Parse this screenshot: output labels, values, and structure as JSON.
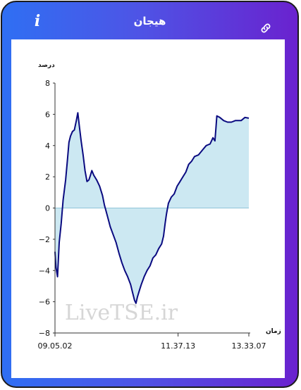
{
  "header": {
    "title": "هیجان",
    "info_label": "i",
    "link_icon": "link-icon"
  },
  "colors": {
    "gradient_start": "#2f6ff3",
    "gradient_end": "#6a22cf",
    "line": "#0a0a80",
    "area": "#cce8f2"
  },
  "watermark": "LiveTSE.ir",
  "chart_data": {
    "type": "area",
    "ylabel": "درصد",
    "xlabel": "زمان",
    "ylim": [
      -8,
      8
    ],
    "yticks": [
      "8",
      "6",
      "4",
      "2",
      "0",
      "−2",
      "−4",
      "−6",
      "−8"
    ],
    "xticks": [
      "09.05.02",
      "11.37.13",
      "13.33.07"
    ],
    "baseline": 0,
    "series": [
      {
        "values": [
          [
            0.0,
            -2.8
          ],
          [
            0.005,
            -3.8
          ],
          [
            0.013,
            -4.4
          ],
          [
            0.022,
            -2.2
          ],
          [
            0.032,
            -1.0
          ],
          [
            0.042,
            0.5
          ],
          [
            0.055,
            1.8
          ],
          [
            0.065,
            3.2
          ],
          [
            0.072,
            4.2
          ],
          [
            0.08,
            4.6
          ],
          [
            0.09,
            4.9
          ],
          [
            0.1,
            5.0
          ],
          [
            0.11,
            5.6
          ],
          [
            0.118,
            6.1
          ],
          [
            0.125,
            5.3
          ],
          [
            0.135,
            4.3
          ],
          [
            0.145,
            3.4
          ],
          [
            0.155,
            2.4
          ],
          [
            0.165,
            1.7
          ],
          [
            0.175,
            1.8
          ],
          [
            0.183,
            2.1
          ],
          [
            0.19,
            2.4
          ],
          [
            0.2,
            2.1
          ],
          [
            0.215,
            1.8
          ],
          [
            0.23,
            1.4
          ],
          [
            0.245,
            0.8
          ],
          [
            0.255,
            0.2
          ],
          [
            0.27,
            -0.5
          ],
          [
            0.285,
            -1.2
          ],
          [
            0.3,
            -1.7
          ],
          [
            0.315,
            -2.2
          ],
          [
            0.33,
            -2.9
          ],
          [
            0.345,
            -3.5
          ],
          [
            0.36,
            -4.0
          ],
          [
            0.375,
            -4.4
          ],
          [
            0.39,
            -4.9
          ],
          [
            0.4,
            -5.4
          ],
          [
            0.41,
            -5.9
          ],
          [
            0.418,
            -6.1
          ],
          [
            0.425,
            -5.7
          ],
          [
            0.435,
            -5.3
          ],
          [
            0.445,
            -4.9
          ],
          [
            0.46,
            -4.4
          ],
          [
            0.475,
            -4.0
          ],
          [
            0.49,
            -3.7
          ],
          [
            0.505,
            -3.2
          ],
          [
            0.52,
            -3.0
          ],
          [
            0.535,
            -2.6
          ],
          [
            0.55,
            -2.3
          ],
          [
            0.56,
            -1.8
          ],
          [
            0.568,
            -1.0
          ],
          [
            0.575,
            -0.4
          ],
          [
            0.585,
            0.3
          ],
          [
            0.6,
            0.7
          ],
          [
            0.615,
            0.9
          ],
          [
            0.63,
            1.4
          ],
          [
            0.645,
            1.7
          ],
          [
            0.66,
            2.0
          ],
          [
            0.675,
            2.3
          ],
          [
            0.69,
            2.8
          ],
          [
            0.705,
            3.0
          ],
          [
            0.72,
            3.3
          ],
          [
            0.74,
            3.4
          ],
          [
            0.76,
            3.7
          ],
          [
            0.78,
            4.0
          ],
          [
            0.8,
            4.1
          ],
          [
            0.815,
            4.5
          ],
          [
            0.825,
            4.3
          ],
          [
            0.83,
            5.1
          ],
          [
            0.835,
            5.9
          ],
          [
            0.85,
            5.8
          ],
          [
            0.87,
            5.6
          ],
          [
            0.89,
            5.5
          ],
          [
            0.91,
            5.5
          ],
          [
            0.93,
            5.6
          ],
          [
            0.96,
            5.6
          ],
          [
            0.98,
            5.8
          ],
          [
            1.0,
            5.75
          ]
        ]
      }
    ]
  }
}
